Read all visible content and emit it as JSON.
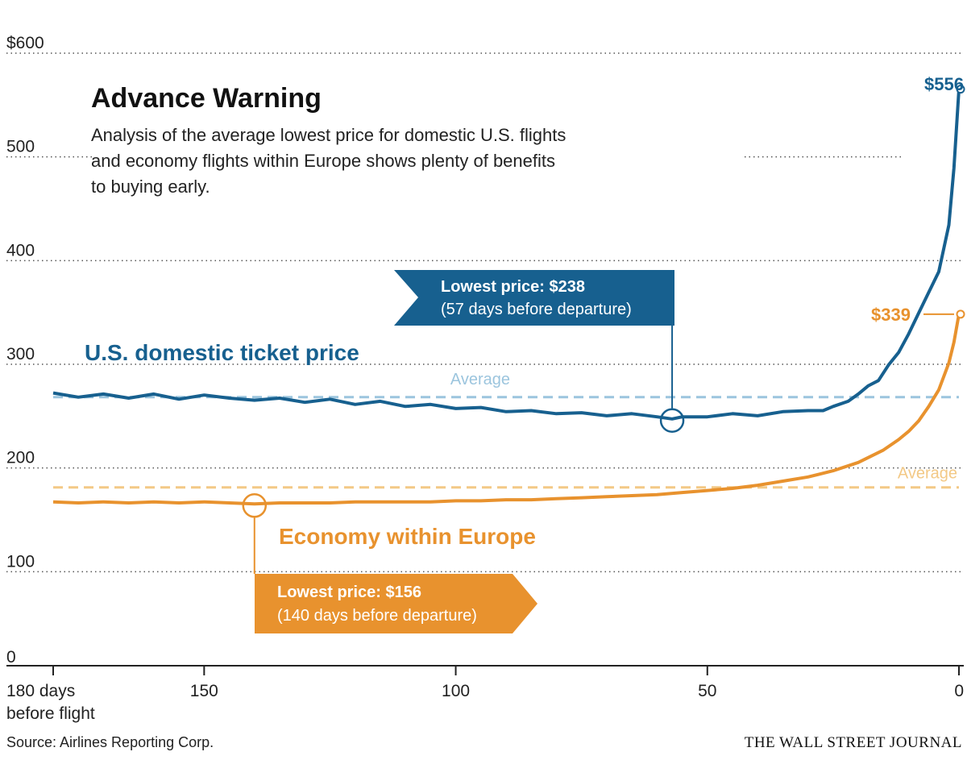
{
  "title": "Advance Warning",
  "subtitle_lines": [
    "Analysis of the average lowest price for domestic U.S. flights",
    "and economy flights within Europe shows plenty of benefits",
    "to buying early."
  ],
  "source": "Source: Airlines Reporting Corp.",
  "publisher": "THE WALL STREET JOURNAL",
  "colors": {
    "us": "#17608f",
    "eu": "#e8922e",
    "us_avg": "#9cc5de",
    "eu_avg": "#f3c986"
  },
  "chart_data": {
    "type": "line",
    "title": "Advance Warning",
    "xlabel": "",
    "ylabel": "",
    "x_range": [
      180,
      0
    ],
    "x_reversed": true,
    "ylim": [
      0,
      600
    ],
    "grid": "dotted horizontal",
    "y_ticks": [
      {
        "value": 600,
        "label": "$600"
      },
      {
        "value": 500,
        "label": "500"
      },
      {
        "value": 400,
        "label": "400"
      },
      {
        "value": 300,
        "label": "300"
      },
      {
        "value": 200,
        "label": "200"
      },
      {
        "value": 100,
        "label": "100"
      },
      {
        "value": 0,
        "label": "0"
      }
    ],
    "x_ticks": [
      {
        "value": 180,
        "label": "180 days",
        "label2": "before flight"
      },
      {
        "value": 150,
        "label": "150"
      },
      {
        "value": 100,
        "label": "100"
      },
      {
        "value": 50,
        "label": "50"
      },
      {
        "value": 0,
        "label": "0"
      }
    ],
    "series": [
      {
        "name": "U.S. domestic ticket price",
        "average_label": "Average",
        "average": 259,
        "end_label": "$556",
        "end_value": 556,
        "min_label_bold": "Lowest price: $238",
        "min_label_sub": "(57 days before departure)",
        "min_x": 57,
        "min_value": 238,
        "points": [
          [
            180,
            263
          ],
          [
            175,
            259
          ],
          [
            170,
            262
          ],
          [
            165,
            258
          ],
          [
            160,
            262
          ],
          [
            155,
            257
          ],
          [
            150,
            261
          ],
          [
            145,
            258
          ],
          [
            140,
            256
          ],
          [
            135,
            258
          ],
          [
            130,
            254
          ],
          [
            125,
            257
          ],
          [
            120,
            252
          ],
          [
            115,
            255
          ],
          [
            110,
            250
          ],
          [
            105,
            252
          ],
          [
            100,
            248
          ],
          [
            95,
            249
          ],
          [
            90,
            245
          ],
          [
            85,
            246
          ],
          [
            80,
            243
          ],
          [
            75,
            244
          ],
          [
            70,
            241
          ],
          [
            65,
            243
          ],
          [
            60,
            240
          ],
          [
            57,
            238
          ],
          [
            55,
            240
          ],
          [
            50,
            240
          ],
          [
            45,
            243
          ],
          [
            40,
            241
          ],
          [
            35,
            245
          ],
          [
            30,
            246
          ],
          [
            27,
            246
          ],
          [
            25,
            250
          ],
          [
            22,
            255
          ],
          [
            20,
            262
          ],
          [
            18,
            270
          ],
          [
            16,
            275
          ],
          [
            14,
            290
          ],
          [
            12,
            302
          ],
          [
            10,
            320
          ],
          [
            8,
            340
          ],
          [
            6,
            360
          ],
          [
            4,
            380
          ],
          [
            2,
            425
          ],
          [
            1,
            480
          ],
          [
            0,
            556
          ]
        ]
      },
      {
        "name": "Economy within Europe",
        "average_label": "Average",
        "average": 172,
        "end_label": "$339",
        "end_value": 339,
        "min_label_bold": "Lowest price: $156",
        "min_label_sub": "(140 days before departure)",
        "min_x": 140,
        "min_value": 156,
        "points": [
          [
            180,
            158
          ],
          [
            175,
            157
          ],
          [
            170,
            158
          ],
          [
            165,
            157
          ],
          [
            160,
            158
          ],
          [
            155,
            157
          ],
          [
            150,
            158
          ],
          [
            145,
            157
          ],
          [
            140,
            156
          ],
          [
            135,
            157
          ],
          [
            130,
            157
          ],
          [
            125,
            157
          ],
          [
            120,
            158
          ],
          [
            115,
            158
          ],
          [
            110,
            158
          ],
          [
            105,
            158
          ],
          [
            100,
            159
          ],
          [
            95,
            159
          ],
          [
            90,
            160
          ],
          [
            85,
            160
          ],
          [
            80,
            161
          ],
          [
            75,
            162
          ],
          [
            70,
            163
          ],
          [
            65,
            164
          ],
          [
            60,
            165
          ],
          [
            55,
            167
          ],
          [
            50,
            169
          ],
          [
            45,
            171
          ],
          [
            40,
            174
          ],
          [
            35,
            178
          ],
          [
            30,
            182
          ],
          [
            25,
            188
          ],
          [
            20,
            196
          ],
          [
            15,
            208
          ],
          [
            12,
            218
          ],
          [
            10,
            226
          ],
          [
            8,
            236
          ],
          [
            6,
            250
          ],
          [
            4,
            266
          ],
          [
            2,
            292
          ],
          [
            1,
            312
          ],
          [
            0,
            339
          ]
        ]
      }
    ]
  }
}
